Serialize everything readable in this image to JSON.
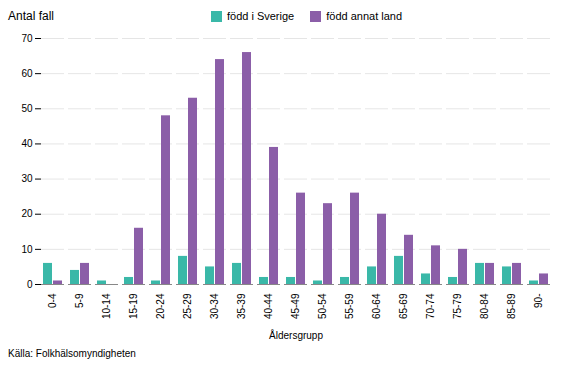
{
  "chart_data": {
    "type": "bar",
    "categories": [
      "0-4",
      "5-9",
      "10-14",
      "15-19",
      "20-24",
      "25-29",
      "30-34",
      "35-39",
      "40-44",
      "45-49",
      "50-54",
      "55-59",
      "60-64",
      "65-69",
      "70-74",
      "75-79",
      "80-84",
      "85-89",
      "90-"
    ],
    "series": [
      {
        "name": "född i Sverige",
        "color": "#3ab8a8",
        "values": [
          6,
          4,
          1,
          2,
          1,
          8,
          5,
          6,
          2,
          2,
          1,
          2,
          5,
          8,
          3,
          2,
          6,
          5,
          1
        ]
      },
      {
        "name": "född annat land",
        "color": "#8b5ea8",
        "values": [
          1,
          6,
          0,
          16,
          48,
          53,
          64,
          66,
          39,
          26,
          23,
          26,
          20,
          14,
          11,
          10,
          6,
          6,
          3
        ]
      }
    ],
    "xlabel": "Åldersgrupp",
    "ylabel": "Antal fall",
    "source": "Källa: Folkhälsomyndigheten",
    "ylim": [
      0,
      70
    ],
    "yticks": [
      0,
      10,
      20,
      30,
      40,
      50,
      60,
      70
    ],
    "grid": true,
    "legend": "top"
  }
}
